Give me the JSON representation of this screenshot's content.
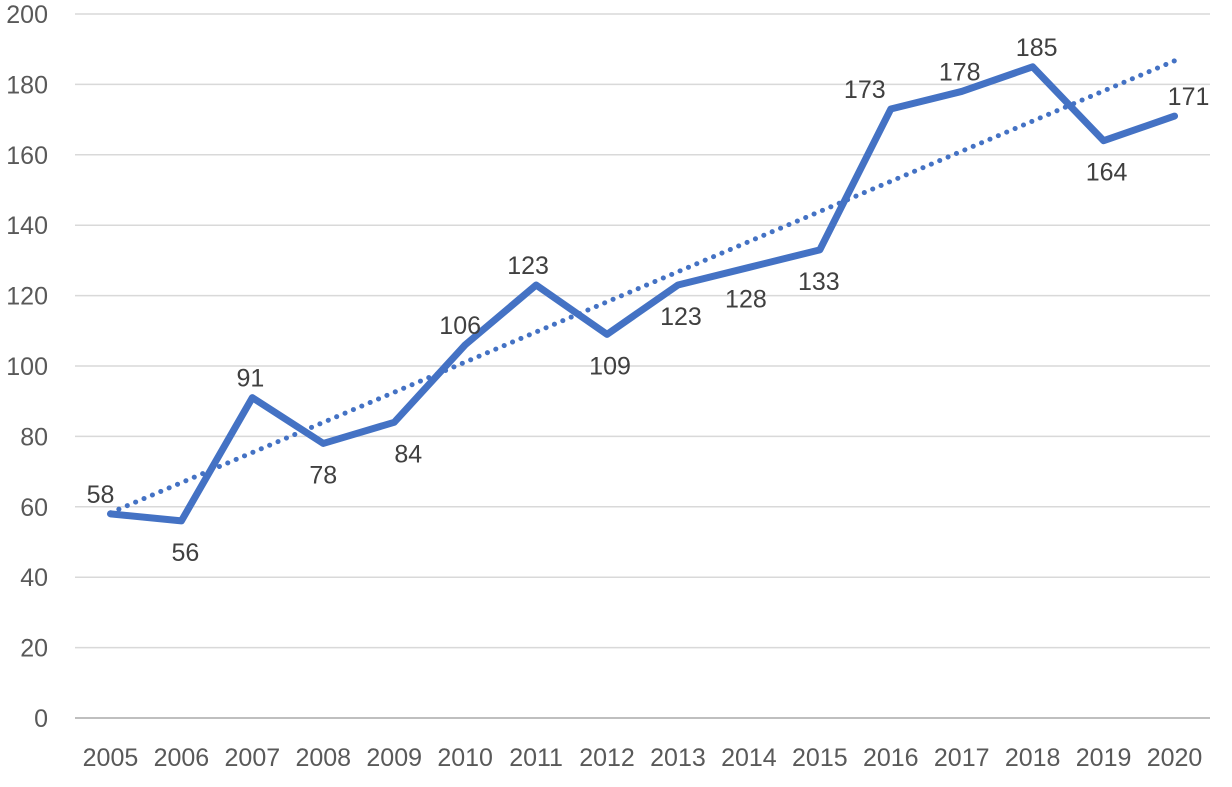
{
  "chart_data": {
    "type": "line",
    "categories": [
      "2005",
      "2006",
      "2007",
      "2008",
      "2009",
      "2010",
      "2011",
      "2012",
      "2013",
      "2014",
      "2015",
      "2016",
      "2017",
      "2018",
      "2019",
      "2020"
    ],
    "series": [
      {
        "name": "values",
        "values": [
          58,
          56,
          91,
          78,
          84,
          106,
          123,
          109,
          123,
          128,
          133,
          173,
          178,
          185,
          164,
          171
        ]
      }
    ],
    "data_labels": [
      "58",
      "56",
      "91",
      "78",
      "84",
      "106",
      "123",
      "109",
      "123",
      "128",
      "133",
      "173",
      "178",
      "185",
      "164",
      "171"
    ],
    "label_positions": [
      "above",
      "below",
      "above",
      "below",
      "below",
      "above",
      "above",
      "below",
      "below",
      "below",
      "below",
      "above",
      "above",
      "above",
      "below",
      "above"
    ],
    "label_dx": [
      -10,
      4,
      -2,
      0,
      14,
      -5,
      -8,
      3,
      3,
      -3,
      -1,
      -26,
      -2,
      4,
      3,
      14
    ],
    "trendline": {
      "style": "dotted",
      "start_value": 58.3,
      "end_value": 186.7
    },
    "title": "",
    "xlabel": "",
    "ylabel": "",
    "ylim": [
      0,
      200
    ],
    "ytick_step": 20,
    "ytick_labels": [
      "0",
      "20",
      "40",
      "60",
      "80",
      "100",
      "120",
      "140",
      "160",
      "180",
      "200"
    ],
    "grid": true,
    "legend": "none",
    "colors": {
      "line": "#4472C4",
      "trendline": "#4472C4",
      "gridline": "#D9D9D9",
      "axis_line": "#BFBFBF",
      "tick_label": "#595959",
      "data_label": "#404040",
      "background": "#FFFFFF"
    }
  }
}
